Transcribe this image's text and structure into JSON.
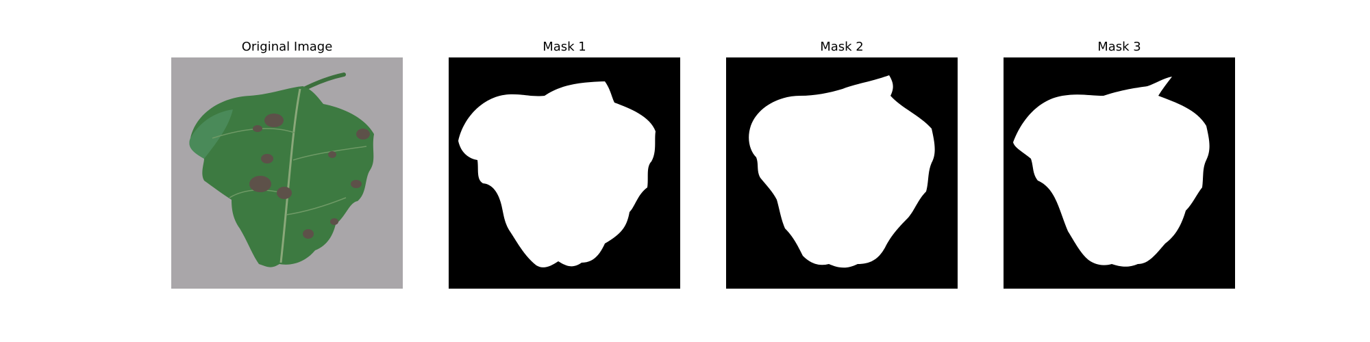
{
  "figure": {
    "panels": [
      {
        "title": "Original Image",
        "kind": "photo"
      },
      {
        "title": "Mask 1",
        "kind": "mask"
      },
      {
        "title": "Mask 2",
        "kind": "mask"
      },
      {
        "title": "Mask 3",
        "kind": "mask"
      }
    ]
  },
  "colors": {
    "background": "#ffffff",
    "mask_background": "#000000",
    "mask_foreground": "#ffffff",
    "photo_background": "#a9a6a9",
    "leaf_green": "#3d7a41",
    "leaf_dark": "#2b5d31",
    "lesion": "#5d5149"
  }
}
